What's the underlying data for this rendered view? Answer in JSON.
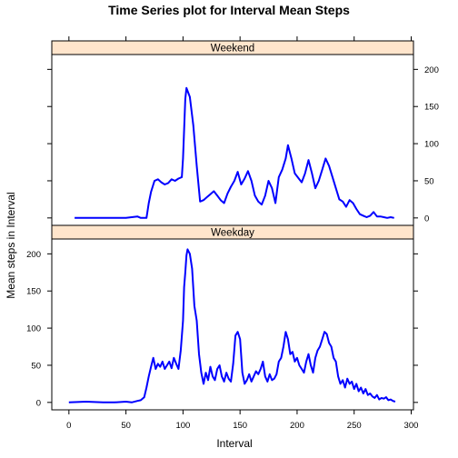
{
  "chart_data": {
    "type": "line",
    "title": "Time Series plot for Interval Mean Steps",
    "xlabel": "Interval",
    "ylabel": "Mean steps in Interval",
    "xlim": [
      -15,
      302
    ],
    "x_ticks": [
      0,
      50,
      100,
      150,
      200,
      250,
      300
    ],
    "ylim": [
      -10,
      220
    ],
    "y_ticks": [
      0,
      50,
      100,
      150,
      200
    ],
    "grid": false,
    "panels": [
      {
        "name": "Weekend",
        "y_tick_side": "right",
        "points": [
          [
            5,
            0
          ],
          [
            20,
            0
          ],
          [
            40,
            0
          ],
          [
            50,
            0
          ],
          [
            55,
            1
          ],
          [
            60,
            2
          ],
          [
            63,
            0
          ],
          [
            68,
            0
          ],
          [
            70,
            20
          ],
          [
            72,
            35
          ],
          [
            75,
            50
          ],
          [
            78,
            52
          ],
          [
            81,
            48
          ],
          [
            84,
            45
          ],
          [
            87,
            47
          ],
          [
            90,
            52
          ],
          [
            93,
            50
          ],
          [
            96,
            53
          ],
          [
            99,
            55
          ],
          [
            100,
            80
          ],
          [
            102,
            160
          ],
          [
            103,
            175
          ],
          [
            106,
            163
          ],
          [
            109,
            125
          ],
          [
            112,
            70
          ],
          [
            115,
            22
          ],
          [
            118,
            24
          ],
          [
            121,
            28
          ],
          [
            124,
            32
          ],
          [
            127,
            36
          ],
          [
            130,
            30
          ],
          [
            133,
            24
          ],
          [
            136,
            20
          ],
          [
            139,
            33
          ],
          [
            142,
            42
          ],
          [
            145,
            50
          ],
          [
            148,
            62
          ],
          [
            151,
            45
          ],
          [
            154,
            53
          ],
          [
            157,
            63
          ],
          [
            160,
            50
          ],
          [
            163,
            30
          ],
          [
            166,
            22
          ],
          [
            169,
            18
          ],
          [
            172,
            30
          ],
          [
            175,
            50
          ],
          [
            178,
            40
          ],
          [
            181,
            20
          ],
          [
            184,
            55
          ],
          [
            187,
            65
          ],
          [
            190,
            80
          ],
          [
            192,
            98
          ],
          [
            195,
            80
          ],
          [
            198,
            60
          ],
          [
            201,
            54
          ],
          [
            204,
            48
          ],
          [
            207,
            60
          ],
          [
            210,
            78
          ],
          [
            213,
            60
          ],
          [
            216,
            40
          ],
          [
            219,
            50
          ],
          [
            222,
            65
          ],
          [
            225,
            80
          ],
          [
            228,
            70
          ],
          [
            231,
            55
          ],
          [
            234,
            40
          ],
          [
            237,
            25
          ],
          [
            240,
            22
          ],
          [
            243,
            15
          ],
          [
            246,
            24
          ],
          [
            249,
            20
          ],
          [
            252,
            12
          ],
          [
            255,
            5
          ],
          [
            258,
            3
          ],
          [
            261,
            1
          ],
          [
            264,
            3
          ],
          [
            267,
            8
          ],
          [
            270,
            2
          ],
          [
            273,
            2
          ],
          [
            276,
            1
          ],
          [
            279,
            0
          ],
          [
            282,
            1
          ],
          [
            285,
            0
          ]
        ]
      },
      {
        "name": "Weekday",
        "y_tick_side": "left",
        "points": [
          [
            0,
            0
          ],
          [
            15,
            1
          ],
          [
            30,
            0
          ],
          [
            40,
            0
          ],
          [
            50,
            1
          ],
          [
            55,
            0
          ],
          [
            60,
            2
          ],
          [
            63,
            3
          ],
          [
            66,
            7
          ],
          [
            68,
            20
          ],
          [
            70,
            35
          ],
          [
            72,
            48
          ],
          [
            74,
            60
          ],
          [
            76,
            45
          ],
          [
            78,
            52
          ],
          [
            80,
            48
          ],
          [
            82,
            55
          ],
          [
            84,
            45
          ],
          [
            86,
            50
          ],
          [
            88,
            55
          ],
          [
            90,
            46
          ],
          [
            92,
            60
          ],
          [
            94,
            52
          ],
          [
            96,
            45
          ],
          [
            98,
            70
          ],
          [
            100,
            110
          ],
          [
            101,
            155
          ],
          [
            102,
            175
          ],
          [
            103,
            198
          ],
          [
            104,
            206
          ],
          [
            106,
            200
          ],
          [
            108,
            180
          ],
          [
            110,
            130
          ],
          [
            112,
            110
          ],
          [
            114,
            65
          ],
          [
            116,
            40
          ],
          [
            118,
            25
          ],
          [
            120,
            40
          ],
          [
            122,
            30
          ],
          [
            124,
            48
          ],
          [
            126,
            35
          ],
          [
            128,
            30
          ],
          [
            130,
            45
          ],
          [
            132,
            50
          ],
          [
            134,
            35
          ],
          [
            136,
            28
          ],
          [
            138,
            40
          ],
          [
            140,
            32
          ],
          [
            142,
            28
          ],
          [
            144,
            52
          ],
          [
            146,
            90
          ],
          [
            148,
            95
          ],
          [
            150,
            85
          ],
          [
            152,
            40
          ],
          [
            154,
            25
          ],
          [
            156,
            30
          ],
          [
            158,
            38
          ],
          [
            160,
            28
          ],
          [
            162,
            35
          ],
          [
            164,
            42
          ],
          [
            166,
            38
          ],
          [
            168,
            45
          ],
          [
            170,
            55
          ],
          [
            172,
            35
          ],
          [
            174,
            28
          ],
          [
            176,
            38
          ],
          [
            178,
            30
          ],
          [
            180,
            32
          ],
          [
            182,
            38
          ],
          [
            184,
            55
          ],
          [
            186,
            60
          ],
          [
            188,
            75
          ],
          [
            190,
            95
          ],
          [
            192,
            85
          ],
          [
            194,
            65
          ],
          [
            196,
            68
          ],
          [
            198,
            55
          ],
          [
            200,
            60
          ],
          [
            202,
            50
          ],
          [
            204,
            45
          ],
          [
            206,
            40
          ],
          [
            208,
            55
          ],
          [
            210,
            65
          ],
          [
            212,
            50
          ],
          [
            214,
            40
          ],
          [
            216,
            60
          ],
          [
            218,
            70
          ],
          [
            220,
            75
          ],
          [
            222,
            85
          ],
          [
            224,
            95
          ],
          [
            226,
            92
          ],
          [
            228,
            80
          ],
          [
            230,
            75
          ],
          [
            232,
            60
          ],
          [
            234,
            55
          ],
          [
            236,
            35
          ],
          [
            238,
            25
          ],
          [
            240,
            30
          ],
          [
            242,
            20
          ],
          [
            244,
            32
          ],
          [
            246,
            25
          ],
          [
            248,
            28
          ],
          [
            250,
            18
          ],
          [
            252,
            25
          ],
          [
            254,
            15
          ],
          [
            256,
            20
          ],
          [
            258,
            12
          ],
          [
            260,
            18
          ],
          [
            262,
            10
          ],
          [
            264,
            12
          ],
          [
            266,
            8
          ],
          [
            268,
            6
          ],
          [
            270,
            10
          ],
          [
            272,
            4
          ],
          [
            274,
            6
          ],
          [
            276,
            5
          ],
          [
            278,
            7
          ],
          [
            280,
            3
          ],
          [
            282,
            4
          ],
          [
            284,
            2
          ],
          [
            286,
            1
          ]
        ]
      }
    ]
  }
}
